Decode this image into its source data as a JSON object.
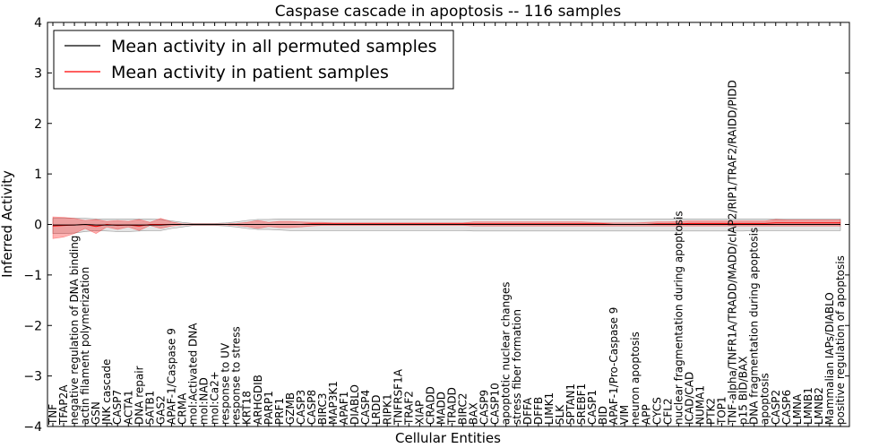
{
  "chart_data": {
    "type": "line",
    "title": "Caspase cascade in apoptosis -- 116 samples",
    "xlabel": "Cellular Entities",
    "ylabel": "Inferred Activity",
    "ylim": [
      -4,
      4
    ],
    "yticks": [
      "4",
      "3",
      "2",
      "1",
      "0",
      "−1",
      "−2",
      "−3",
      "−4"
    ],
    "legend": {
      "position": "top-left",
      "entries": [
        {
          "label": "Mean activity in all permuted samples",
          "color": "#000000"
        },
        {
          "label": "Mean activity in patient samples",
          "color": "#ff0000"
        }
      ]
    },
    "categories": [
      "TNF",
      "TFAP2A",
      "negative regulation of DNA binding",
      "actin filament polymerization",
      "GSN",
      "JNK cascade",
      "CASP7",
      "ACTA1",
      "DNA repair",
      "SATB1",
      "GAS2",
      "APAF-1/Caspase 9",
      "CRMA",
      "mol:Activated DNA",
      "mol:NAD",
      "mol:Ca2+",
      "response to UV",
      "response to stress",
      "KRT18",
      "ARHGDIB",
      "PARP1",
      "PRF1",
      "GZMB",
      "CASP3",
      "CASP8",
      "BIRC3",
      "MAP3K1",
      "APAF1",
      "DIABLO",
      "CASP4",
      "LRDD",
      "RIPK1",
      "TNFRSF1A",
      "TRAF2",
      "XIAP",
      "CRADD",
      "MADD",
      "TRADD",
      "BIRC2",
      "BAX",
      "CASP9",
      "CASP10",
      "apoptotic nuclear changes",
      "stress fiber formation",
      "DFFA",
      "DFFB",
      "LIMK1",
      "SLK",
      "SPTAN1",
      "SREBF1",
      "CASP1",
      "BID",
      "APAF-1/Pro-Caspase 9",
      "VIM",
      "neuron apoptosis",
      "APP",
      "CYCS",
      "CFL2",
      "nuclear fragmentation during apoptosis",
      "ICAD/CAD",
      "NUMA1",
      "PTK2",
      "TOP1",
      "TNF-alpha/TNFR1A/TRADD/MADD/cIAP2/RIP1/TRAF2/RAIDD/PIDD",
      "p15 BID/BAX",
      "DNA fragmentation during apoptosis",
      "apoptosis",
      "CASP2",
      "CASP6",
      "LMNA",
      "LMNB1",
      "LMNB2",
      "Mammalian IAPs/DIABLO",
      "positive regulation of apoptosis"
    ],
    "series": [
      {
        "name": "Mean activity in all permuted samples",
        "color": "#000000",
        "values": [
          -0.01,
          -0.01,
          -0.01,
          0.0,
          -0.01,
          -0.01,
          -0.01,
          -0.01,
          -0.01,
          -0.01,
          -0.01,
          0.0,
          0.0,
          0.0,
          0.0,
          0.0,
          0.0,
          0.0,
          0.0,
          0.0,
          0.0,
          0.0,
          0.0,
          0.0,
          0.0,
          0.0,
          0.0,
          0.0,
          0.0,
          0.0,
          0.0,
          0.0,
          0.0,
          0.0,
          0.0,
          0.0,
          0.0,
          0.0,
          0.0,
          0.0,
          0.0,
          0.0,
          0.0,
          0.0,
          0.0,
          0.0,
          0.0,
          0.0,
          0.0,
          0.0,
          0.0,
          0.0,
          0.0,
          0.0,
          0.0,
          0.0,
          0.0,
          0.0,
          0.0,
          0.0,
          0.0,
          0.0,
          0.0,
          0.0,
          0.0,
          0.0,
          0.0,
          0.0,
          0.0,
          0.0,
          0.0,
          0.0,
          0.0,
          0.0
        ],
        "band_low": [
          -0.18,
          -0.18,
          -0.17,
          -0.14,
          -0.12,
          -0.13,
          -0.14,
          -0.14,
          -0.13,
          -0.12,
          -0.12,
          -0.08,
          -0.05,
          -0.02,
          -0.02,
          -0.02,
          -0.03,
          -0.05,
          -0.08,
          -0.1,
          -0.1,
          -0.11,
          -0.12,
          -0.12,
          -0.12,
          -0.12,
          -0.12,
          -0.12,
          -0.12,
          -0.12,
          -0.12,
          -0.12,
          -0.12,
          -0.12,
          -0.12,
          -0.12,
          -0.12,
          -0.12,
          -0.12,
          -0.13,
          -0.13,
          -0.13,
          -0.13,
          -0.13,
          -0.13,
          -0.13,
          -0.13,
          -0.13,
          -0.13,
          -0.13,
          -0.13,
          -0.13,
          -0.13,
          -0.13,
          -0.13,
          -0.13,
          -0.13,
          -0.13,
          -0.13,
          -0.13,
          -0.13,
          -0.13,
          -0.13,
          -0.13,
          -0.13,
          -0.12,
          -0.12,
          -0.12,
          -0.12,
          -0.12,
          -0.12,
          -0.12,
          -0.12,
          -0.12
        ],
        "band_high": [
          0.12,
          0.12,
          0.12,
          0.12,
          0.11,
          0.11,
          0.11,
          0.11,
          0.11,
          0.11,
          0.1,
          0.07,
          0.04,
          0.02,
          0.02,
          0.02,
          0.03,
          0.05,
          0.08,
          0.1,
          0.1,
          0.11,
          0.11,
          0.11,
          0.11,
          0.11,
          0.11,
          0.11,
          0.11,
          0.11,
          0.11,
          0.11,
          0.11,
          0.11,
          0.11,
          0.11,
          0.11,
          0.11,
          0.11,
          0.11,
          0.11,
          0.11,
          0.11,
          0.11,
          0.11,
          0.11,
          0.11,
          0.11,
          0.11,
          0.11,
          0.11,
          0.11,
          0.11,
          0.11,
          0.11,
          0.11,
          0.11,
          0.11,
          0.11,
          0.11,
          0.11,
          0.11,
          0.11,
          0.11,
          0.11,
          0.11,
          0.11,
          0.11,
          0.11,
          0.11,
          0.11,
          0.11,
          0.11,
          0.11
        ]
      },
      {
        "name": "Mean activity in patient samples",
        "color": "#ff0000",
        "values": [
          -0.03,
          -0.02,
          -0.01,
          0.0,
          -0.04,
          0.0,
          -0.02,
          -0.01,
          -0.03,
          0.0,
          0.0,
          0.0,
          0.0,
          0.0,
          0.0,
          0.0,
          0.0,
          0.0,
          0.0,
          0.0,
          0.0,
          0.0,
          0.0,
          0.0,
          0.01,
          0.01,
          0.01,
          0.01,
          0.01,
          0.01,
          0.01,
          0.01,
          0.01,
          0.01,
          0.01,
          0.01,
          0.01,
          0.01,
          0.01,
          0.01,
          0.01,
          0.01,
          0.01,
          0.01,
          0.01,
          0.01,
          0.01,
          0.01,
          0.01,
          0.01,
          0.01,
          0.01,
          0.0,
          0.0,
          0.0,
          0.0,
          0.01,
          0.01,
          0.01,
          0.02,
          0.02,
          0.02,
          0.02,
          0.02,
          0.02,
          0.02,
          0.02,
          0.03,
          0.03,
          0.03,
          0.03,
          0.03,
          0.03,
          0.03
        ],
        "band_low": [
          -0.28,
          -0.25,
          -0.18,
          -0.08,
          -0.18,
          -0.05,
          -0.1,
          -0.05,
          -0.12,
          -0.02,
          -0.08,
          -0.03,
          -0.01,
          -0.01,
          -0.01,
          -0.01,
          -0.01,
          -0.02,
          -0.04,
          -0.08,
          -0.04,
          -0.06,
          -0.06,
          -0.05,
          -0.03,
          -0.02,
          -0.02,
          -0.02,
          -0.02,
          -0.02,
          -0.02,
          -0.02,
          -0.02,
          -0.02,
          -0.02,
          -0.02,
          -0.02,
          -0.02,
          -0.02,
          -0.03,
          -0.03,
          -0.03,
          -0.03,
          -0.03,
          -0.03,
          -0.03,
          -0.03,
          -0.03,
          -0.03,
          -0.03,
          -0.03,
          -0.03,
          -0.03,
          -0.03,
          -0.03,
          -0.03,
          -0.03,
          -0.03,
          -0.03,
          -0.03,
          -0.03,
          -0.03,
          -0.03,
          -0.03,
          -0.03,
          -0.03,
          -0.03,
          -0.03,
          -0.03,
          -0.03,
          -0.03,
          -0.03,
          -0.03,
          -0.03
        ],
        "band_high": [
          0.15,
          0.14,
          0.12,
          0.08,
          0.1,
          0.06,
          0.08,
          0.06,
          0.1,
          0.04,
          0.12,
          0.05,
          0.01,
          0.01,
          0.01,
          0.01,
          0.01,
          0.02,
          0.04,
          0.08,
          0.04,
          0.06,
          0.06,
          0.05,
          0.04,
          0.04,
          0.03,
          0.03,
          0.03,
          0.03,
          0.03,
          0.03,
          0.03,
          0.03,
          0.03,
          0.03,
          0.03,
          0.03,
          0.03,
          0.05,
          0.05,
          0.05,
          0.05,
          0.05,
          0.05,
          0.05,
          0.05,
          0.05,
          0.05,
          0.05,
          0.04,
          0.03,
          0.03,
          0.03,
          0.03,
          0.04,
          0.05,
          0.05,
          0.06,
          0.07,
          0.07,
          0.07,
          0.07,
          0.07,
          0.07,
          0.07,
          0.07,
          0.1,
          0.09,
          0.09,
          0.09,
          0.09,
          0.09,
          0.09
        ]
      }
    ]
  }
}
